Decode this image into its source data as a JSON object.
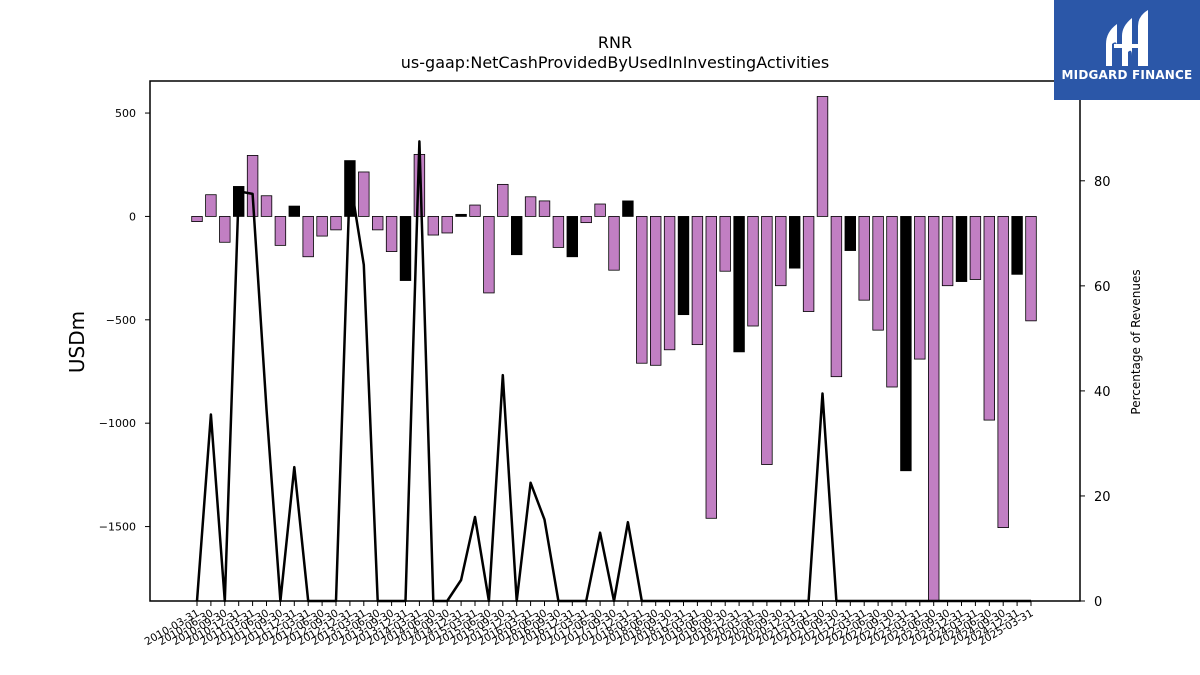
{
  "logo": {
    "text": "MIDGARD FINANCE"
  },
  "chart_data": {
    "type": "bar",
    "title": "RNR",
    "subtitle": "us-gaap:NetCashProvidedByUsedInInvestingActivities",
    "ylabel": "USDm",
    "y2label": "Percentage of Revenues",
    "ylim": [
      -1860,
      655
    ],
    "y2lim": [
      0,
      99
    ],
    "yticks": [
      500,
      0,
      -500,
      -1000,
      -1500
    ],
    "ytick_labels": [
      "500",
      "0",
      "−500",
      "−1000",
      "−1500"
    ],
    "y2ticks": [
      0,
      20,
      40,
      60,
      80
    ],
    "y2tick_labels": [
      "0",
      "20",
      "40",
      "60",
      "80"
    ],
    "colors": {
      "bar_purple": "#c17fc3",
      "bar_black": "#000000",
      "line": "#000000"
    },
    "categories": [
      "2010-03-31",
      "2010-06-30",
      "2010-09-30",
      "2010-12-31",
      "2011-03-31",
      "2011-06-30",
      "2011-09-30",
      "2011-12-31",
      "2012-03-31",
      "2012-06-30",
      "2012-09-30",
      "2012-12-31",
      "2013-03-31",
      "2013-06-30",
      "2013-09-30",
      "2013-12-31",
      "2014-03-31",
      "2014-06-30",
      "2014-09-30",
      "2014-12-31",
      "2015-03-31",
      "2015-06-30",
      "2015-09-30",
      "2015-12-31",
      "2016-03-31",
      "2016-06-30",
      "2016-09-30",
      "2016-12-31",
      "2017-03-31",
      "2017-06-30",
      "2017-09-30",
      "2017-12-31",
      "2018-03-31",
      "2018-06-30",
      "2018-09-30",
      "2018-12-31",
      "2019-03-31",
      "2019-06-30",
      "2019-09-30",
      "2019-12-31",
      "2020-03-31",
      "2020-06-30",
      "2020-09-30",
      "2020-12-31",
      "2021-03-31",
      "2021-06-30",
      "2021-09-30",
      "2021-12-31",
      "2022-03-31",
      "2022-06-30",
      "2022-09-30",
      "2022-12-31",
      "2023-03-31",
      "2023-06-30",
      "2023-09-30",
      "2023-12-31",
      "2024-03-31",
      "2024-06-30",
      "2024-09-30",
      "2024-12-31",
      "2025-03-31"
    ],
    "x_tick_labels": [
      "2010-03-31",
      "2010-06-30",
      "2010-09-30",
      "2010-12-31",
      "2011-03-31",
      "2011-06-30",
      "2011-09-30",
      "2011-12-31",
      "2012-03-31",
      "2012-06-30",
      "2012-09-30",
      "2012-12-31",
      "2013-03-31",
      "2013-06-30",
      "2013-09-30",
      "2013-12-31",
      "2014-03-31",
      "2014-06-30",
      "2014-09-30",
      "2014-12-31",
      "2015-03-31",
      "2015-06-30",
      "2015-09-30",
      "2015-12-31",
      "2016-03-31",
      "2016-06-30",
      "2016-09-30",
      "2016-12-31",
      "2017-03-31",
      "2017-06-30",
      "2017-09-30",
      "2017-12-31",
      "2018-03-31",
      "2018-06-30",
      "2018-09-30",
      "2018-12-31",
      "2019-03-31",
      "2019-06-30",
      "2019-09-30",
      "2019-12-31",
      "2020-03-31",
      "2020-06-30",
      "2020-09-30",
      "2020-12-31",
      "2021-03-31",
      "2021-06-30",
      "2021-09-30",
      "2021-12-31",
      "2022-03-31",
      "2022-06-30",
      "2022-09-30",
      "2022-12-31",
      "2023-03-31",
      "2023-06-30",
      "2023-09-30",
      "2023-12-31",
      "2024-03-31",
      "2024-06-30",
      "2024-09-30",
      "2024-12-31",
      "2025-03-31"
    ],
    "series": [
      {
        "axis": "left",
        "values": [
          -25,
          105,
          -125,
          145,
          295,
          100,
          -140,
          50,
          -195,
          -95,
          -65,
          270,
          215,
          -65,
          -170,
          -310,
          300,
          -90,
          -80,
          10,
          55,
          -370,
          155,
          -185,
          95,
          75,
          -150,
          -195,
          -30,
          60,
          -260,
          75,
          -710,
          -720,
          -645,
          -475,
          -620,
          -1460,
          -265,
          -655,
          -530,
          -1200,
          -335,
          -250,
          -460,
          580,
          -775,
          -165,
          -405,
          -550,
          -825,
          -1230,
          -690,
          -1860,
          -335,
          -315,
          -305,
          -985,
          -1505,
          -280,
          -505
        ],
        "colors": [
          "purple",
          "purple",
          "purple",
          "black",
          "purple",
          "purple",
          "purple",
          "black",
          "purple",
          "purple",
          "purple",
          "black",
          "purple",
          "purple",
          "purple",
          "black",
          "purple",
          "purple",
          "purple",
          "black",
          "purple",
          "purple",
          "purple",
          "black",
          "purple",
          "purple",
          "purple",
          "black",
          "purple",
          "purple",
          "purple",
          "black",
          "purple",
          "purple",
          "purple",
          "black",
          "purple",
          "purple",
          "purple",
          "black",
          "purple",
          "purple",
          "purple",
          "black",
          "purple",
          "purple",
          "purple",
          "black",
          "purple",
          "purple",
          "purple",
          "black",
          "purple",
          "purple",
          "purple",
          "black",
          "purple",
          "purple",
          "purple",
          "black",
          "purple"
        ]
      },
      {
        "axis": "right",
        "type": "line",
        "values": [
          0,
          35.5,
          0,
          78,
          77.5,
          36.5,
          0,
          25.5,
          0,
          0,
          0,
          80.5,
          64,
          0,
          0,
          0,
          87.5,
          0,
          0,
          4,
          16,
          0,
          43,
          0,
          22.5,
          15.5,
          0,
          0,
          0,
          13,
          0,
          15,
          0,
          0,
          0,
          0,
          0,
          0,
          0,
          0,
          0,
          0,
          0,
          0,
          0,
          39.5,
          0,
          0,
          0,
          0,
          0,
          0,
          0,
          0,
          0,
          0,
          0,
          0,
          0,
          0,
          0
        ]
      }
    ]
  }
}
